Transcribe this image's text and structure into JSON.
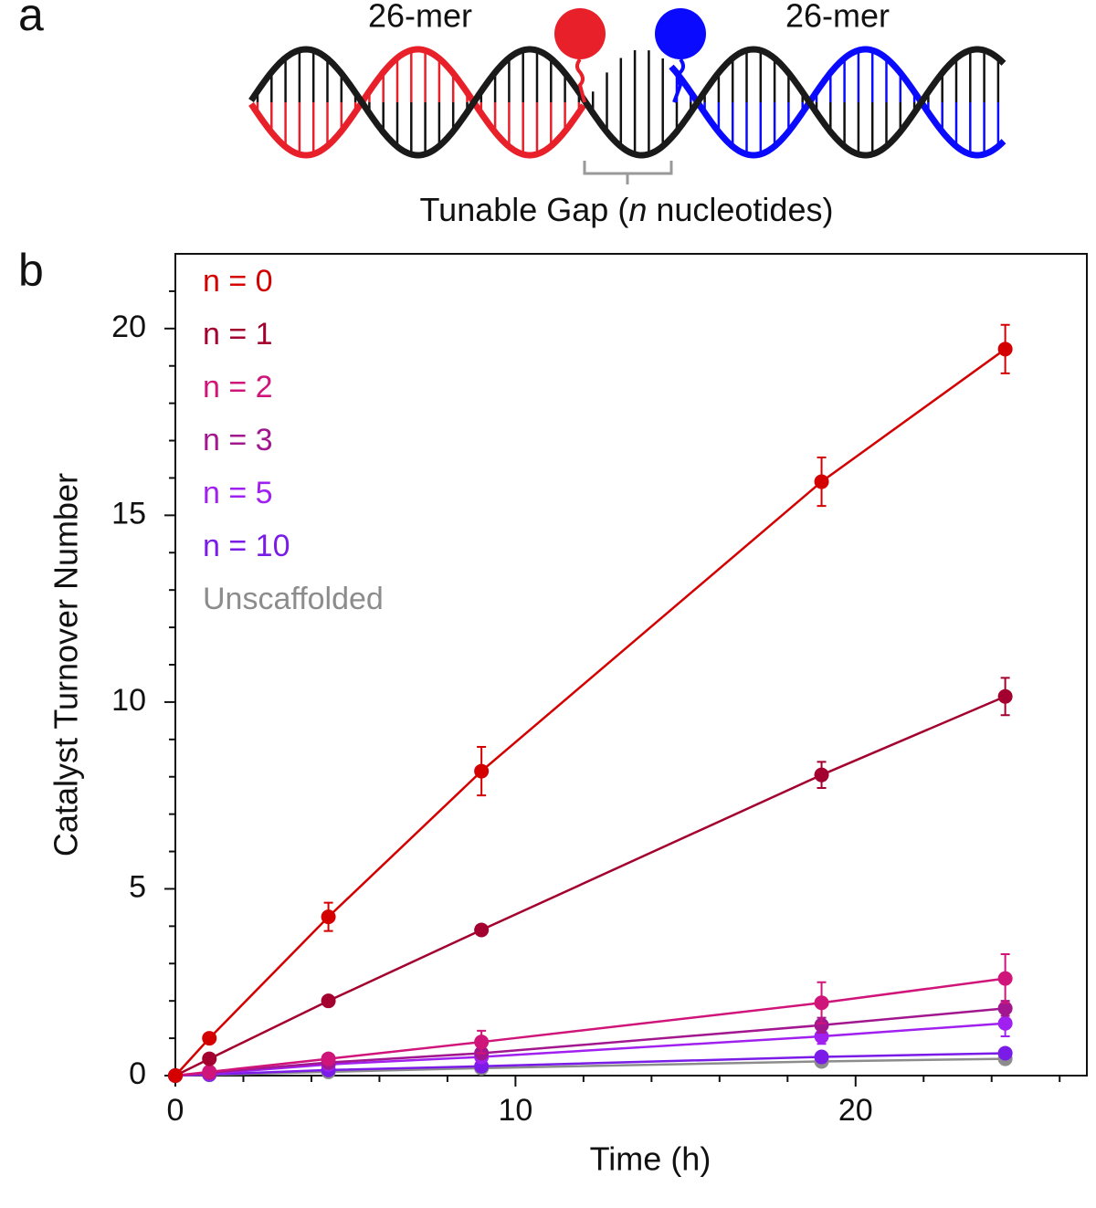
{
  "diagram": {
    "panel_label": "a",
    "left_strand_label": "26-mer",
    "right_strand_label": "26-mer",
    "gap_label": [
      "Tunable Gap (",
      "n",
      " nucleotides)"
    ]
  },
  "chart_data": {
    "type": "line",
    "panel_label": "b",
    "x_label": "Time (h)",
    "y_label": "Catalyst Turnover Number",
    "x": [
      0,
      1,
      4.5,
      9,
      19,
      24.4
    ],
    "xlim": [
      0,
      26.8
    ],
    "xticks": [
      0,
      10,
      20
    ],
    "x_minor_ticks": [
      2,
      4,
      6,
      8,
      12,
      14,
      16,
      18,
      22,
      24,
      26
    ],
    "ylim": [
      0,
      22
    ],
    "yticks": [
      0,
      5,
      10,
      15,
      20
    ],
    "y_minor_ticks": [
      1,
      2,
      3,
      4,
      6,
      7,
      8,
      9,
      11,
      12,
      13,
      14,
      16,
      17,
      18,
      19,
      21
    ],
    "legend": "upper left",
    "series": [
      {
        "name": "n = 0",
        "color": "#d40000",
        "values": [
          0,
          1.0,
          4.25,
          8.15,
          15.9,
          19.45
        ],
        "errors": [
          0,
          0.05,
          0.38,
          0.65,
          0.65,
          0.65
        ]
      },
      {
        "name": "n = 1",
        "color": "#a3002f",
        "values": [
          0,
          0.45,
          2.0,
          3.9,
          8.05,
          10.15
        ],
        "errors": [
          0,
          0.03,
          0.05,
          0.05,
          0.35,
          0.5
        ]
      },
      {
        "name": "n = 2",
        "color": "#d0157a",
        "values": [
          0,
          0.1,
          0.45,
          0.9,
          1.95,
          2.6
        ],
        "errors": [
          0,
          0.03,
          0.1,
          0.3,
          0.55,
          0.65
        ]
      },
      {
        "name": "n = 3",
        "color": "#a2178f",
        "values": [
          0,
          0.08,
          0.35,
          0.6,
          1.35,
          1.8
        ],
        "errors": [
          0,
          0.02,
          0.05,
          0.1,
          0.2,
          0.2
        ]
      },
      {
        "name": "n = 5",
        "color": "#a020f0",
        "values": [
          0,
          0.05,
          0.3,
          0.5,
          1.05,
          1.4
        ],
        "errors": [
          0,
          0.02,
          0.05,
          0.1,
          0.2,
          0.35
        ]
      },
      {
        "name": "n = 10",
        "color": "#7a1be8",
        "values": [
          0,
          0.03,
          0.15,
          0.25,
          0.5,
          0.6
        ],
        "errors": [
          0,
          0.01,
          0.03,
          0.05,
          0.05,
          0.05
        ]
      },
      {
        "name": "Unscaffolded",
        "color": "#8c8c8c",
        "values": [
          0,
          0.02,
          0.1,
          0.2,
          0.38,
          0.45
        ],
        "errors": [
          0,
          0.01,
          0.02,
          0.03,
          0.04,
          0.04
        ]
      }
    ]
  }
}
